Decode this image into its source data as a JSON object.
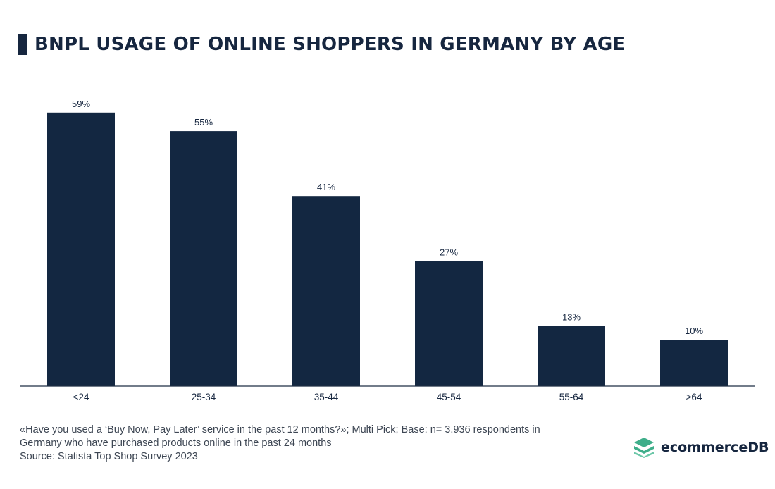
{
  "title": "BNPL USAGE OF ONLINE SHOPPERS IN GERMANY BY AGE",
  "colors": {
    "bar": "#132741",
    "axis": "#1e2e44",
    "text": "#16263f",
    "logo_accent": "#3fae8a"
  },
  "chart_data": {
    "type": "bar",
    "title": "BNPL USAGE OF ONLINE SHOPPERS IN GERMANY BY AGE",
    "categories": [
      "<24",
      "25-34",
      "35-44",
      "45-54",
      "55-64",
      ">64"
    ],
    "values": [
      59,
      55,
      41,
      27,
      13,
      10
    ],
    "value_labels": [
      "59%",
      "55%",
      "41%",
      "27%",
      "13%",
      "10%"
    ],
    "unit": "%",
    "xlabel": "",
    "ylabel": "",
    "ylim": [
      0,
      65
    ],
    "grid": false,
    "legend": "none"
  },
  "footnote": {
    "line1": "«Have you used a ‘Buy Now, Pay Later’ service in the past 12 months?»; Multi Pick; Base: n= 3.936 respondents in",
    "line2": "Germany who have purchased products online in the past 24 months",
    "source": "Source: Statista Top Shop Survey 2023"
  },
  "brand": {
    "name": "ecommerceDB",
    "icon": "stacked-layers-logo-icon"
  }
}
